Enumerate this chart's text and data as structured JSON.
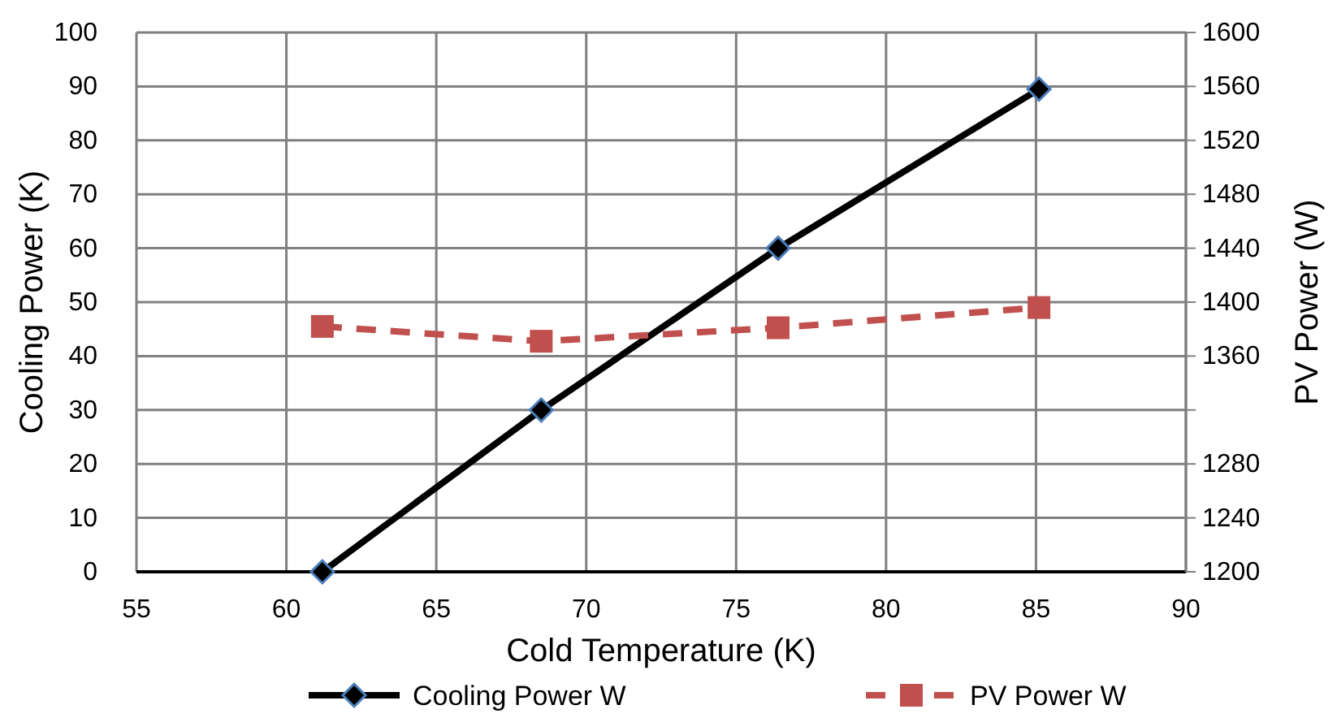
{
  "chart_data": {
    "type": "line",
    "xlabel": "Cold Temperature (K)",
    "ylabel": "Cooling Power (K)",
    "y2label": "PV Power (W)",
    "xlim": [
      55,
      90
    ],
    "xticks": [
      55,
      60,
      65,
      70,
      75,
      80,
      85,
      90
    ],
    "ylim": [
      0,
      100
    ],
    "yticks": [
      0,
      10,
      20,
      30,
      40,
      50,
      60,
      70,
      80,
      90,
      100
    ],
    "y2lim": [
      1200,
      1600
    ],
    "y2ticks": [
      1200,
      1240,
      1280,
      {
        "value": 1320,
        "label": null
      },
      1360,
      1400,
      1440,
      1480,
      1520,
      1560,
      1600
    ],
    "grid": true,
    "legend": "bottom",
    "series": [
      {
        "name": "Cooling Power W",
        "color": "#000000",
        "x": [
          61.2,
          68.5,
          76.4,
          85.1
        ],
        "values": [
          0,
          30,
          60,
          89.5
        ],
        "marker": "diamond",
        "line_style": "solid"
      },
      {
        "name": "PV Power W",
        "color": "#c0504d",
        "x": [
          61.2,
          68.5,
          76.4,
          85.1
        ],
        "values": [
          1382,
          1371,
          1381,
          1396
        ],
        "marker": "square",
        "line_style": "dashed",
        "axis": "y2"
      }
    ]
  }
}
